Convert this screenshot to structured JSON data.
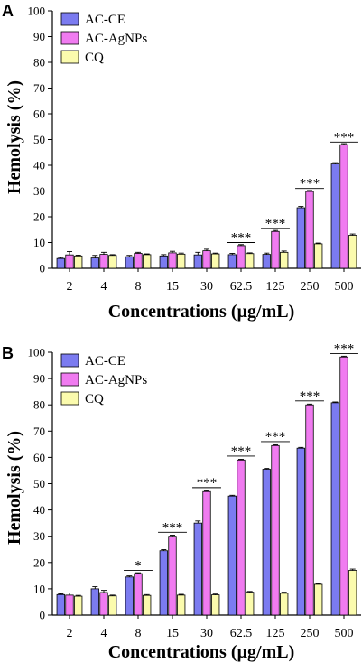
{
  "colors": {
    "ac_ce": "#7b7bf0",
    "ac_agnps": "#f07bf0",
    "cq": "#fbfbad"
  },
  "chart_data": [
    {
      "type": "bar",
      "panel": "A",
      "categories": [
        "2",
        "4",
        "8",
        "15",
        "30",
        "62.5",
        "125",
        "250",
        "500"
      ],
      "xlabel": "Concentrations (µg/mL)",
      "ylabel": "Hemolysis (%)",
      "ylim": [
        0,
        100
      ],
      "yticks": [
        "0",
        "10",
        "20",
        "30",
        "40",
        "50",
        "60",
        "70",
        "80",
        "90",
        "100"
      ],
      "legend_position": "top-left",
      "series": [
        {
          "name": "AC-CE",
          "values": [
            3.8,
            4.0,
            4.5,
            4.8,
            5.2,
            5.3,
            5.4,
            23.5,
            40.5
          ],
          "errors": [
            0.4,
            1.0,
            0.5,
            0.5,
            1.0,
            0.5,
            0.5,
            0.5,
            0.5
          ]
        },
        {
          "name": "AC-AgNPs",
          "values": [
            5.2,
            5.4,
            5.8,
            6.0,
            6.8,
            8.8,
            14.3,
            29.8,
            48.0
          ],
          "errors": [
            1.3,
            0.8,
            0.4,
            0.6,
            0.6,
            0.4,
            0.4,
            0.4,
            0.4
          ]
        },
        {
          "name": "CQ",
          "values": [
            4.8,
            5.0,
            5.3,
            5.5,
            5.6,
            5.7,
            6.2,
            9.5,
            12.8
          ],
          "errors": [
            0.3,
            0.3,
            0.3,
            0.4,
            0.3,
            0.3,
            0.5,
            0.3,
            0.5
          ]
        }
      ],
      "significance": [
        {
          "category": "62.5",
          "label": "***",
          "level": 10
        },
        {
          "category": "125",
          "label": "***",
          "level": 15.5
        },
        {
          "category": "250",
          "label": "***",
          "level": 31
        },
        {
          "category": "500",
          "label": "***",
          "level": 49
        }
      ]
    },
    {
      "type": "bar",
      "panel": "B",
      "categories": [
        "2",
        "4",
        "8",
        "15",
        "30",
        "62.5",
        "125",
        "250",
        "500"
      ],
      "xlabel": "Concentrations (µg/mL)",
      "ylabel": "Hemolysis (%)",
      "ylim": [
        0,
        100
      ],
      "yticks": [
        "0",
        "10",
        "20",
        "30",
        "40",
        "50",
        "60",
        "70",
        "80",
        "90",
        "100"
      ],
      "legend_position": "top-left",
      "series": [
        {
          "name": "AC-CE",
          "values": [
            7.8,
            10.0,
            14.5,
            24.5,
            35.0,
            45.3,
            55.5,
            63.5,
            80.8
          ],
          "errors": [
            0.3,
            0.8,
            0.4,
            0.4,
            0.8,
            0.3,
            0.3,
            0.3,
            0.3
          ]
        },
        {
          "name": "AC-AgNPs",
          "values": [
            7.6,
            8.6,
            15.8,
            30.0,
            47.0,
            59.0,
            64.5,
            80.0,
            98.2
          ],
          "errors": [
            0.8,
            0.8,
            0.3,
            0.4,
            0.3,
            0.3,
            0.3,
            0.3,
            0.3
          ]
        },
        {
          "name": "CQ",
          "values": [
            7.2,
            7.3,
            7.5,
            7.6,
            7.7,
            8.7,
            8.3,
            11.7,
            17.0
          ],
          "errors": [
            0.3,
            0.3,
            0.3,
            0.3,
            0.3,
            0.3,
            0.4,
            0.3,
            0.5
          ]
        }
      ],
      "significance": [
        {
          "category": "8",
          "label": "*",
          "level": 17
        },
        {
          "category": "15",
          "label": "***",
          "level": 31.5
        },
        {
          "category": "30",
          "label": "***",
          "level": 48.5
        },
        {
          "category": "62.5",
          "label": "***",
          "level": 60.5
        },
        {
          "category": "125",
          "label": "***",
          "level": 66
        },
        {
          "category": "250",
          "label": "***",
          "level": 81.5
        },
        {
          "category": "500",
          "label": "***",
          "level": 99.5
        }
      ]
    }
  ]
}
